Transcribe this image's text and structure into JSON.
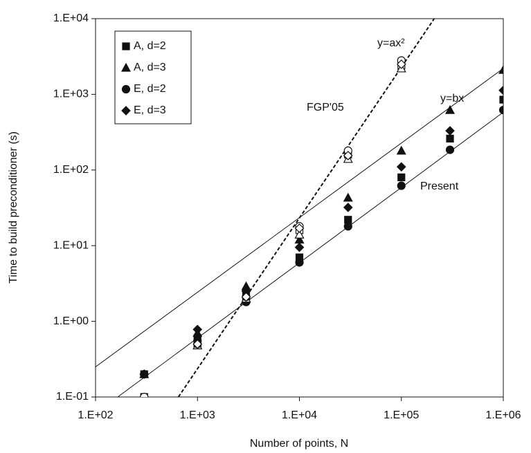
{
  "chart_data": {
    "type": "scatter",
    "log_x": true,
    "log_y": true,
    "x_label": "Number of points, N",
    "y_label": "Time to build preconditioner (s)",
    "xlim": [
      100,
      1000000
    ],
    "ylim": [
      0.1,
      10000
    ],
    "xticks": [
      {
        "value": 100,
        "label": "1.E+02"
      },
      {
        "value": 1000,
        "label": "1.E+03"
      },
      {
        "value": 10000,
        "label": "1.E+04"
      },
      {
        "value": 100000,
        "label": "1.E+05"
      },
      {
        "value": 1000000,
        "label": "1.E+06"
      }
    ],
    "yticks": [
      {
        "value": 0.1,
        "label": "1.E-01"
      },
      {
        "value": 1,
        "label": "1.E+00"
      },
      {
        "value": 10,
        "label": "1.E+01"
      },
      {
        "value": 100,
        "label": "1.E+02"
      },
      {
        "value": 1000,
        "label": "1.E+03"
      },
      {
        "value": 10000,
        "label": "1.E+04"
      }
    ],
    "legend": "top-left",
    "series": [
      {
        "name": "A, d=2",
        "marker": "square",
        "filled": true,
        "color": "#111",
        "x": [
          300,
          1000,
          3000,
          10000,
          30000,
          100000,
          300000,
          1000000
        ],
        "values": [
          0.2,
          0.6,
          2.2,
          7,
          22,
          80,
          260,
          850
        ]
      },
      {
        "name": "A, d=3",
        "marker": "triangle",
        "filled": true,
        "color": "#111",
        "x": [
          300,
          1000,
          3000,
          10000,
          30000,
          100000,
          300000,
          1000000
        ],
        "values": [
          0.2,
          0.7,
          2.9,
          12,
          43,
          180,
          620,
          2100
        ]
      },
      {
        "name": "E, d=2",
        "marker": "circle",
        "filled": true,
        "color": "#111",
        "x": [
          300,
          1000,
          3000,
          10000,
          30000,
          100000,
          300000,
          1000000
        ],
        "values": [
          0.2,
          0.55,
          1.8,
          6,
          18,
          62,
          185,
          620
        ]
      },
      {
        "name": "E, d=3",
        "marker": "diamond",
        "filled": true,
        "color": "#111",
        "x": [
          300,
          1000,
          3000,
          10000,
          30000,
          100000,
          300000,
          1000000
        ],
        "values": [
          0.2,
          0.78,
          2.5,
          9.5,
          32,
          110,
          330,
          1130
        ]
      },
      {
        "marker": "square",
        "filled": false,
        "color": "#111",
        "x": [
          300,
          1000,
          3000,
          10000,
          30000,
          100000
        ],
        "values": [
          0.1,
          0.5,
          2,
          16,
          160,
          2400
        ]
      },
      {
        "marker": "triangle",
        "filled": false,
        "color": "#111",
        "x": [
          1000,
          3000,
          10000,
          30000,
          100000
        ],
        "values": [
          0.48,
          2,
          14,
          140,
          2200
        ]
      },
      {
        "marker": "circle",
        "filled": false,
        "color": "#111",
        "x": [
          300,
          1000,
          3000,
          10000,
          30000,
          100000
        ],
        "values": [
          0.1,
          0.5,
          2.1,
          18,
          180,
          2800
        ]
      },
      {
        "marker": "diamond",
        "filled": false,
        "color": "#111",
        "x": [
          1000,
          3000,
          10000,
          30000,
          100000
        ],
        "values": [
          0.5,
          2.1,
          17,
          155,
          2500
        ]
      }
    ],
    "lines": [
      {
        "dashed": true,
        "color": "#111",
        "x": [
          650,
          210000
        ],
        "values": [
          0.1,
          10000
        ]
      },
      {
        "dashed": false,
        "color": "#111",
        "x": [
          100,
          1000000
        ],
        "values": [
          0.25,
          2200
        ]
      },
      {
        "dashed": false,
        "color": "#111",
        "x": [
          165,
          1000000
        ],
        "values": [
          0.1,
          580
        ]
      }
    ],
    "annotations": [
      "y=ax²",
      "y=bx",
      "FGP'05",
      "Present"
    ]
  }
}
